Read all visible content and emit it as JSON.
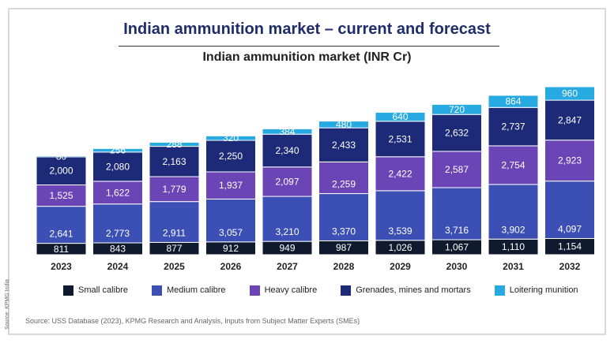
{
  "header": {
    "title": "Indian ammunition market – current and forecast",
    "subtitle": "Indian ammunition market (INR Cr)"
  },
  "chart_data": {
    "type": "bar",
    "stacked": true,
    "title": "Indian ammunition market (INR Cr)",
    "categories": [
      "2023",
      "2024",
      "2025",
      "2026",
      "2027",
      "2028",
      "2029",
      "2030",
      "2031",
      "2032"
    ],
    "series": [
      {
        "name": "Small calibre",
        "color": "#101a2e",
        "values": [
          811,
          843,
          877,
          912,
          949,
          987,
          1026,
          1067,
          1110,
          1154
        ]
      },
      {
        "name": "Medium calibre",
        "color": "#3c4fb5",
        "values": [
          2641,
          2773,
          2911,
          3057,
          3210,
          3370,
          3539,
          3716,
          3902,
          4097
        ]
      },
      {
        "name": "Heavy calibre",
        "color": "#6b45b5",
        "values": [
          1525,
          1622,
          1779,
          1937,
          2097,
          2259,
          2422,
          2587,
          2754,
          2923
        ]
      },
      {
        "name": "Grenades, mines and mortars",
        "color": "#1d2a78",
        "values": [
          2000,
          2080,
          2163,
          2250,
          2340,
          2433,
          2531,
          2632,
          2737,
          2847
        ]
      },
      {
        "name": "Loitering munition",
        "color": "#27a9e1",
        "values": [
          80,
          256,
          288,
          320,
          384,
          480,
          640,
          720,
          864,
          960
        ]
      }
    ],
    "value_labels": [
      [
        "811",
        "843",
        "877",
        "912",
        "949",
        "987",
        "1,026",
        "1,067",
        "1,110",
        "1,154"
      ],
      [
        "2,641",
        "2,773",
        "2,911",
        "3,057",
        "3,210",
        "3,370",
        "3,539",
        "3,716",
        "3,902",
        "4,097"
      ],
      [
        "1,525",
        "1,622",
        "1,779",
        "1,937",
        "2,097",
        "2,259",
        "2,422",
        "2,587",
        "2,754",
        "2,923"
      ],
      [
        "2,000",
        "2,080",
        "2,163",
        "2,250",
        "2,340",
        "2,433",
        "2,531",
        "2,632",
        "2,737",
        "2,847"
      ],
      [
        "80",
        "256",
        "288",
        "320",
        "384",
        "480",
        "640",
        "720",
        "864",
        "960"
      ]
    ],
    "legend_position": "bottom",
    "grid": false
  },
  "legend": {
    "items": [
      {
        "label": "Small calibre",
        "color": "#101a2e"
      },
      {
        "label": "Medium calibre",
        "color": "#3c4fb5"
      },
      {
        "label": "Heavy calibre",
        "color": "#6b45b5"
      },
      {
        "label": "Grenades, mines and mortars",
        "color": "#1d2a78"
      },
      {
        "label": "Loitering munition",
        "color": "#27a9e1"
      }
    ]
  },
  "footer": {
    "source": "Source: USS Database (2023), KPMG Research and Analysis, Inputs from Subject Matter Experts (SMEs)",
    "side_note": "Source: KPMG India"
  }
}
